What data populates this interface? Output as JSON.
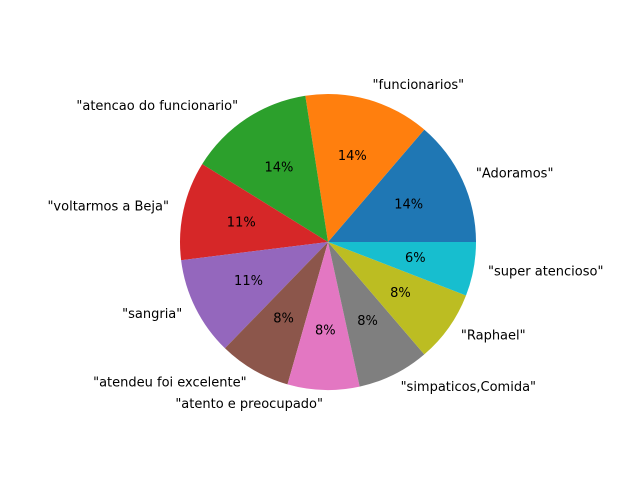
{
  "chart_data": {
    "type": "pie",
    "title": "",
    "start_angle_deg": 0,
    "direction": "counterclockwise",
    "slices": [
      {
        "label": "\"Adoramos\"",
        "percent": 14,
        "pct_label": "14%",
        "color": "#1f77b4"
      },
      {
        "label": "\"funcionarios\"",
        "percent": 14,
        "pct_label": "14%",
        "color": "#ff7f0e"
      },
      {
        "label": "\"atencao do funcionario\"",
        "percent": 14,
        "pct_label": "14%",
        "color": "#2ca02c"
      },
      {
        "label": "\"voltarmos a Beja\"",
        "percent": 11,
        "pct_label": "11%",
        "color": "#d62728"
      },
      {
        "label": "\"sangria\"",
        "percent": 11,
        "pct_label": "11%",
        "color": "#9467bd"
      },
      {
        "label": "\"atendeu foi excelente\"",
        "percent": 8,
        "pct_label": "8%",
        "color": "#8c564b"
      },
      {
        "label": "\"atento e preocupado\"",
        "percent": 8,
        "pct_label": "8%",
        "color": "#e377c2"
      },
      {
        "label": "\"simpaticos,Comida\"",
        "percent": 8,
        "pct_label": "8%",
        "color": "#7f7f7f"
      },
      {
        "label": "\"Raphael\"",
        "percent": 8,
        "pct_label": "8%",
        "color": "#bcbd22"
      },
      {
        "label": "\"super atencioso\"",
        "percent": 6,
        "pct_label": "6%",
        "color": "#17becf"
      }
    ]
  }
}
